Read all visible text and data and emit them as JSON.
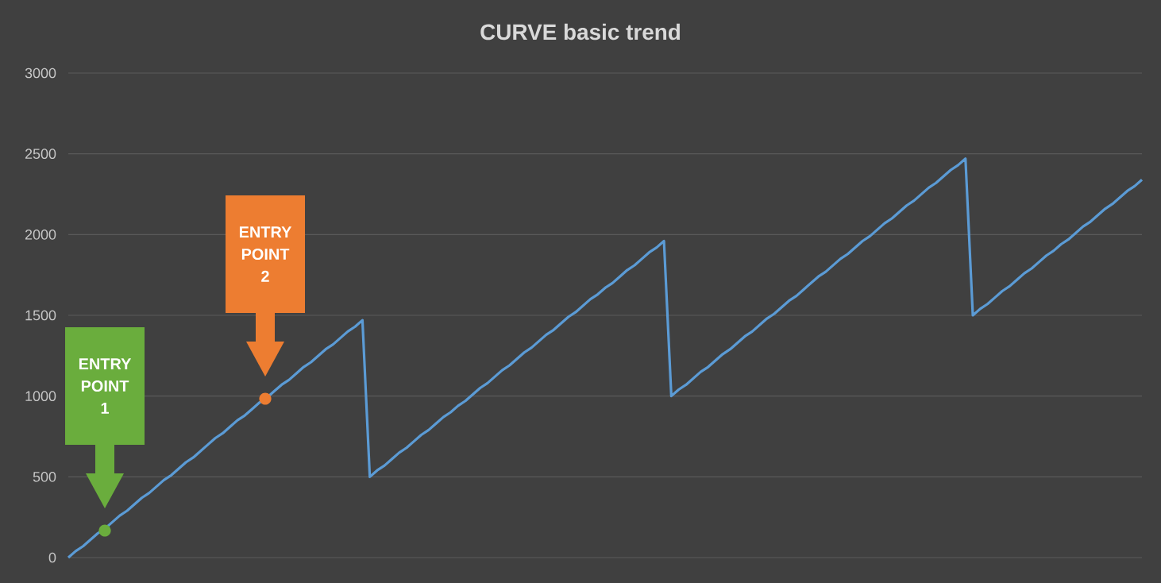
{
  "chart_data": {
    "type": "line",
    "title": "CURVE basic trend",
    "categories": [
      null,
      null,
      null,
      null,
      null,
      null,
      null,
      null,
      null,
      null,
      null,
      null,
      null,
      null,
      null,
      null,
      null,
      null,
      null,
      null,
      null,
      null,
      null,
      null,
      null,
      null,
      null,
      null,
      null,
      null,
      null,
      null,
      null,
      null,
      null,
      null,
      null,
      null,
      null,
      null,
      null,
      null,
      null,
      null,
      null,
      null,
      null,
      null,
      null,
      null,
      null,
      null,
      null,
      null,
      null,
      null,
      null,
      null,
      null,
      null,
      null,
      null,
      null,
      null,
      null,
      null,
      null,
      null,
      null,
      null,
      null,
      null,
      null,
      null,
      null,
      null,
      null,
      null,
      null,
      null,
      null,
      null,
      null,
      null,
      null,
      null,
      null,
      null,
      null,
      null,
      null,
      null,
      null,
      null,
      null,
      null,
      null,
      null,
      null,
      null,
      null,
      null,
      null,
      null,
      null,
      null,
      null,
      null,
      null,
      null,
      null,
      null,
      null,
      null,
      null,
      null,
      null,
      null,
      null,
      null,
      null,
      null,
      null,
      null,
      null,
      null,
      null,
      null,
      null,
      null,
      null,
      null,
      null,
      null,
      null,
      null,
      null,
      null,
      null,
      null,
      null,
      null,
      null,
      null,
      null,
      null,
      null
    ],
    "series": [
      {
        "color": "#5b9bd5",
        "values": [
          0,
          40,
          70,
          110,
          150,
          180,
          220,
          260,
          290,
          330,
          370,
          400,
          440,
          480,
          510,
          550,
          590,
          620,
          660,
          700,
          740,
          770,
          810,
          850,
          880,
          920,
          960,
          990,
          1030,
          1070,
          1100,
          1140,
          1180,
          1210,
          1250,
          1290,
          1320,
          1360,
          1400,
          1430,
          1470,
          500,
          540,
          570,
          610,
          650,
          680,
          720,
          760,
          790,
          830,
          870,
          900,
          940,
          970,
          1010,
          1050,
          1080,
          1120,
          1160,
          1190,
          1230,
          1270,
          1300,
          1340,
          1380,
          1410,
          1450,
          1490,
          1520,
          1560,
          1600,
          1630,
          1670,
          1700,
          1740,
          1780,
          1810,
          1850,
          1890,
          1920,
          1960,
          1000,
          1040,
          1070,
          1110,
          1150,
          1180,
          1220,
          1260,
          1290,
          1330,
          1370,
          1400,
          1440,
          1480,
          1510,
          1550,
          1590,
          1620,
          1660,
          1700,
          1740,
          1770,
          1810,
          1850,
          1880,
          1920,
          1960,
          1990,
          2030,
          2070,
          2100,
          2140,
          2180,
          2210,
          2250,
          2290,
          2320,
          2360,
          2400,
          2430,
          2470,
          1500,
          1540,
          1570,
          1610,
          1650,
          1680,
          1720,
          1760,
          1790,
          1830,
          1870,
          1900,
          1940,
          1970,
          2010,
          2050,
          2080,
          2120,
          2160,
          2190,
          2230,
          2270,
          2300,
          2340
        ]
      }
    ],
    "ylim": [
      0,
      3000
    ],
    "yticks": [
      0,
      500,
      1000,
      1500,
      2000,
      2500,
      3000
    ],
    "grid": "y",
    "tick_labels": "y",
    "marker": "none",
    "line_style": "solid",
    "annotations": [
      "ENTRY POINT 1",
      "ENTRY POINT 2"
    ]
  }
}
